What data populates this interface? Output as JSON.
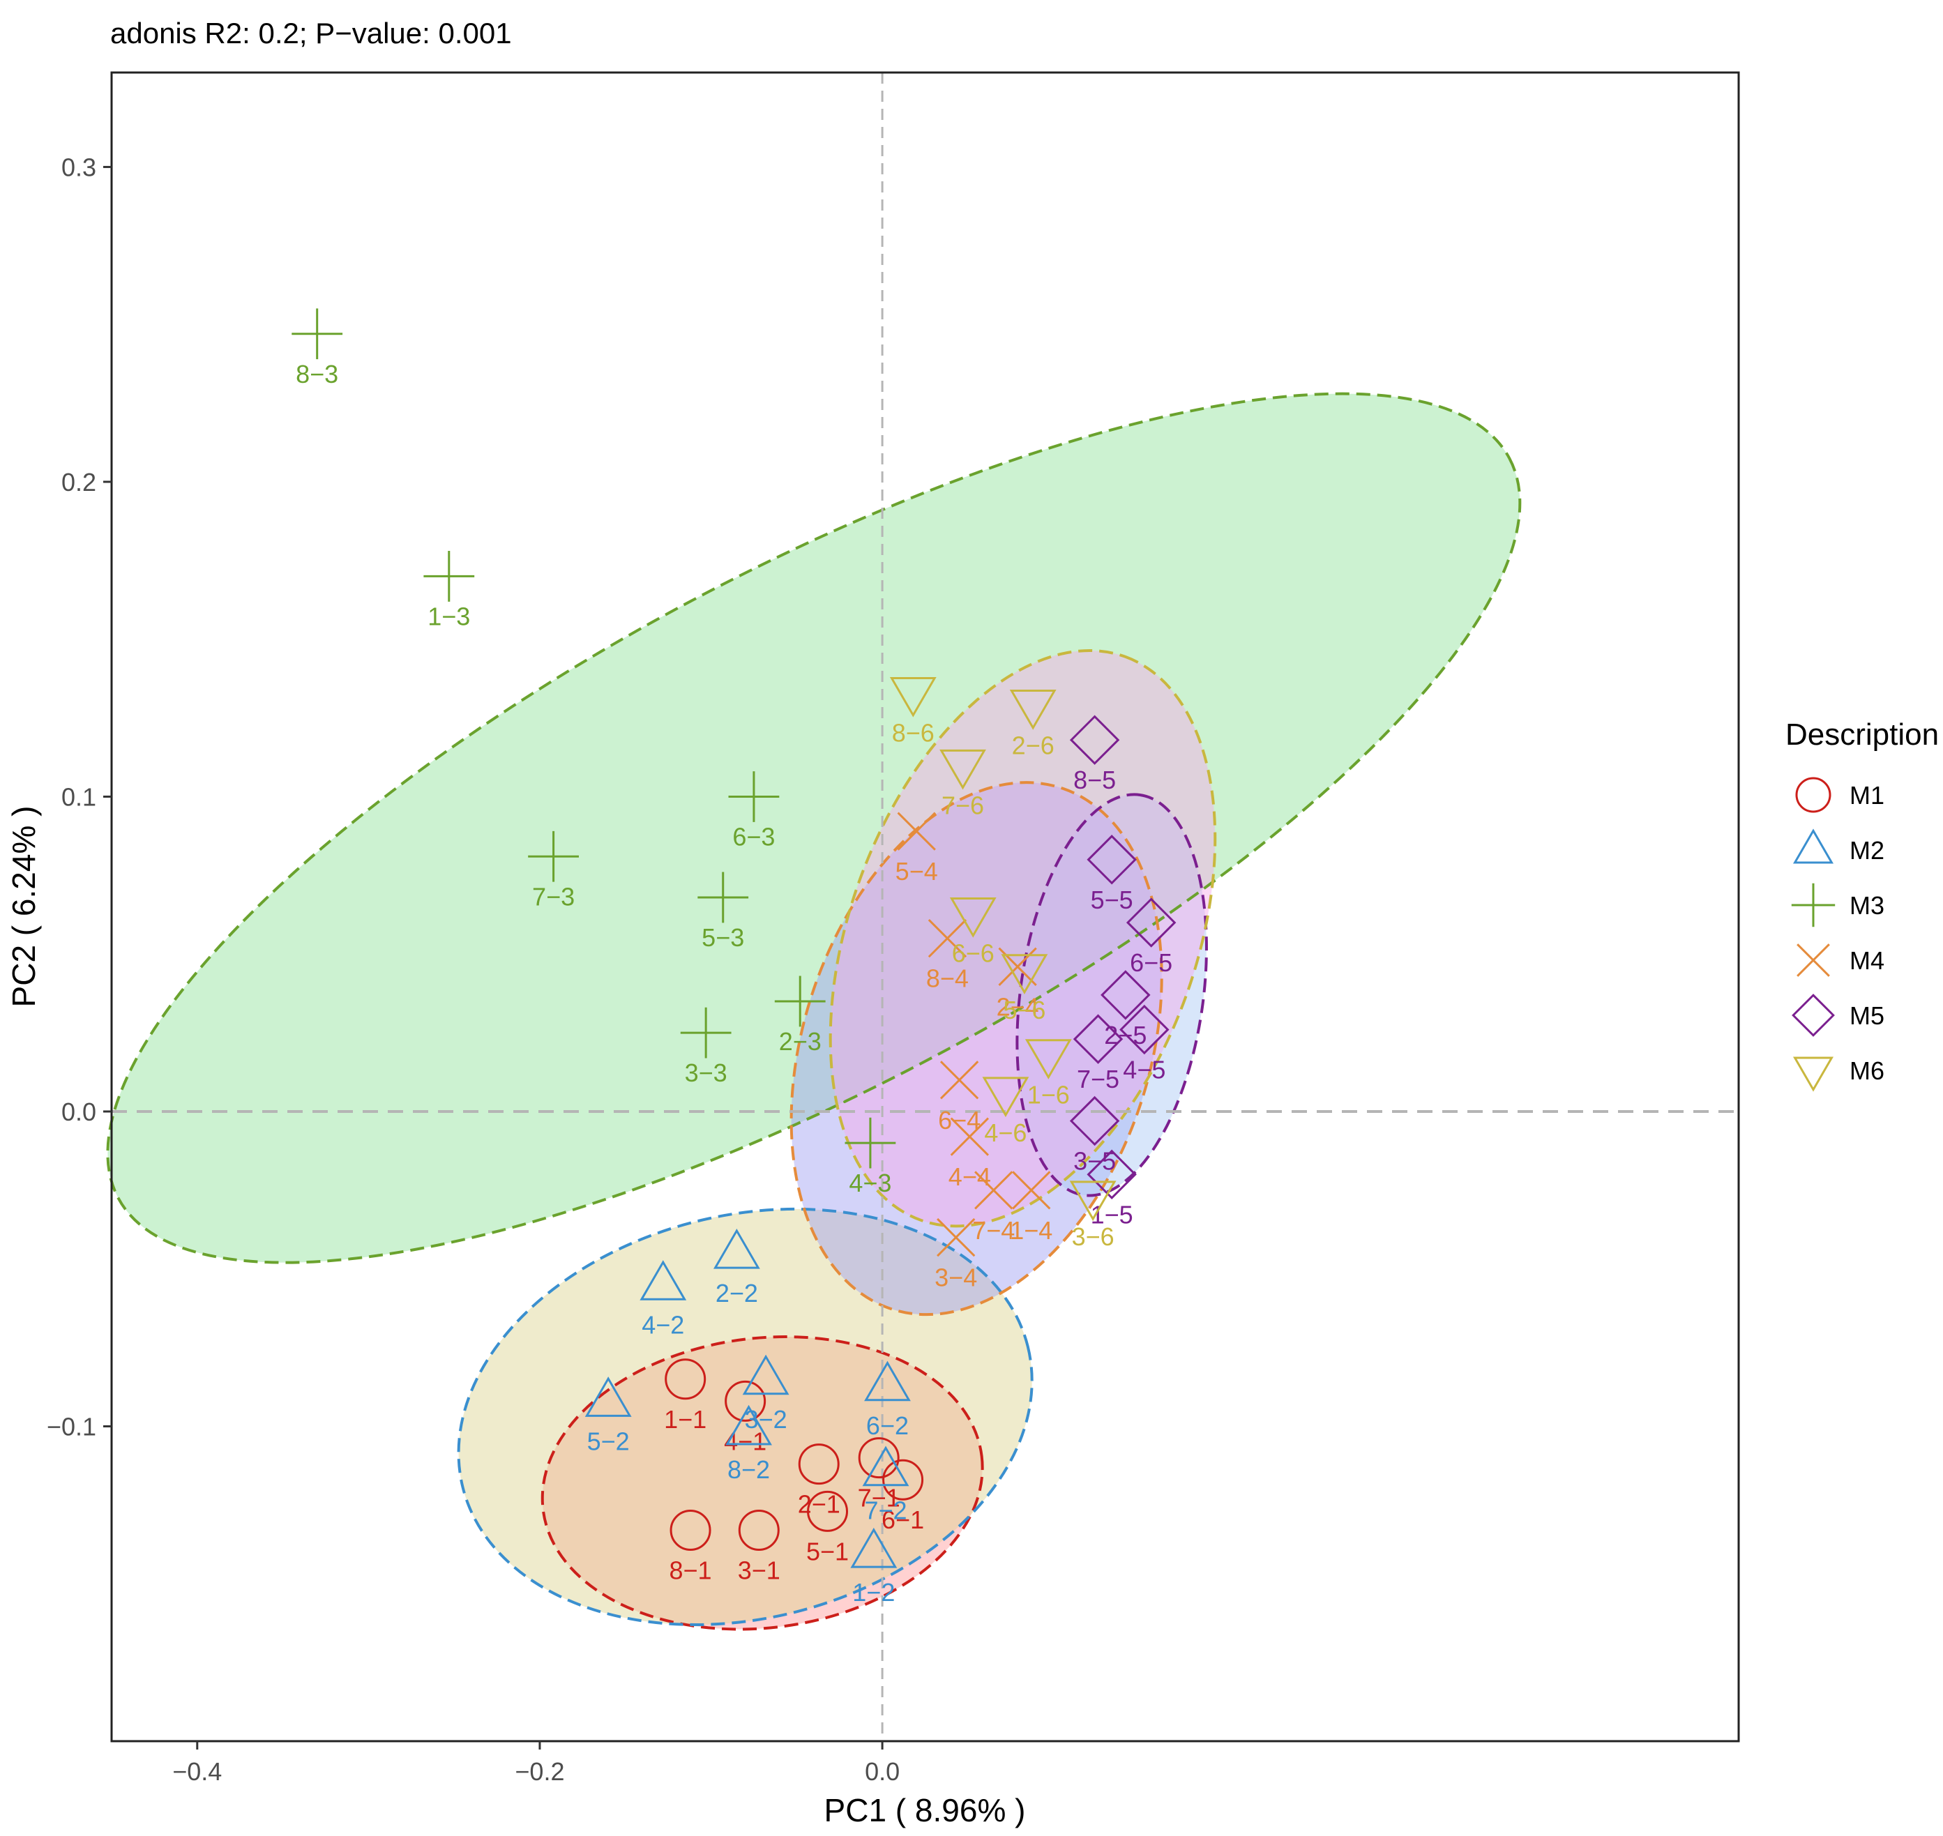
{
  "chart_data": {
    "type": "scatter",
    "subtitle": "adonis R2: 0.2; P−value: 0.001",
    "xlabel": "PC1 ( 8.96% )",
    "ylabel": "PC2 ( 6.24% )",
    "xlim": [
      -0.45,
      0.5
    ],
    "ylim": [
      -0.2,
      0.33
    ],
    "x_ticks": [
      -0.4,
      -0.2,
      0.0
    ],
    "x_tick_labels": [
      "−0.4",
      "−0.2",
      "0.0"
    ],
    "y_ticks": [
      0.3,
      0.2,
      0.1,
      0.0,
      -0.1
    ],
    "y_tick_labels": [
      "0.3",
      "0.2",
      "0.1",
      "0.0",
      "−0.1"
    ],
    "reference_lines": {
      "x": 0.0,
      "y": 0.0
    },
    "grid": false,
    "legend": {
      "title": "Description",
      "position": "right"
    },
    "series": [
      {
        "name": "M1",
        "shape": "circle",
        "color": "#cc1f1a",
        "ellipse_fill": "#ff9a9a",
        "points": [
          {
            "label": "1−1",
            "x": -0.115,
            "y": -0.085
          },
          {
            "label": "2−1",
            "x": -0.037,
            "y": -0.112
          },
          {
            "label": "3−1",
            "x": -0.072,
            "y": -0.133
          },
          {
            "label": "4−1",
            "x": -0.08,
            "y": -0.092
          },
          {
            "label": "5−1",
            "x": -0.032,
            "y": -0.127
          },
          {
            "label": "6−1",
            "x": 0.012,
            "y": -0.117
          },
          {
            "label": "7−1",
            "x": -0.002,
            "y": -0.11
          },
          {
            "label": "8−1",
            "x": -0.112,
            "y": -0.133
          }
        ],
        "ellipse": {
          "cx": -0.07,
          "cy": -0.118,
          "rx": 0.129,
          "ry": 0.046,
          "angle": -7
        }
      },
      {
        "name": "M2",
        "shape": "triangle-up",
        "color": "#3a8fcf",
        "ellipse_fill": "#dcd28f",
        "points": [
          {
            "label": "1−2",
            "x": -0.005,
            "y": -0.14
          },
          {
            "label": "2−2",
            "x": -0.085,
            "y": -0.045
          },
          {
            "label": "3−2",
            "x": -0.068,
            "y": -0.085
          },
          {
            "label": "4−2",
            "x": -0.128,
            "y": -0.055
          },
          {
            "label": "5−2",
            "x": -0.16,
            "y": -0.092
          },
          {
            "label": "6−2",
            "x": 0.003,
            "y": -0.087
          },
          {
            "label": "7−2",
            "x": 0.002,
            "y": -0.114
          },
          {
            "label": "8−2",
            "x": -0.078,
            "y": -0.101
          }
        ],
        "ellipse": {
          "cx": -0.08,
          "cy": -0.097,
          "rx": 0.17,
          "ry": 0.064,
          "angle": -14
        }
      },
      {
        "name": "M3",
        "shape": "plus",
        "color": "#6aa22d",
        "ellipse_fill": "#8ee39a",
        "points": [
          {
            "label": "1−3",
            "x": -0.253,
            "y": 0.17
          },
          {
            "label": "2−3",
            "x": -0.048,
            "y": 0.035
          },
          {
            "label": "3−3",
            "x": -0.103,
            "y": 0.025
          },
          {
            "label": "4−3",
            "x": -0.007,
            "y": -0.01
          },
          {
            "label": "5−3",
            "x": -0.093,
            "y": 0.068
          },
          {
            "label": "6−3",
            "x": -0.075,
            "y": 0.1
          },
          {
            "label": "7−3",
            "x": -0.192,
            "y": 0.081
          },
          {
            "label": "8−3",
            "x": -0.33,
            "y": 0.247
          }
        ],
        "ellipse": {
          "cx": -0.04,
          "cy": 0.09,
          "rx": 0.46,
          "ry": 0.082,
          "angle": -28
        }
      },
      {
        "name": "M4",
        "shape": "cross",
        "color": "#e58b3b",
        "ellipse_fill": "#9e9ef2",
        "points": [
          {
            "label": "1−4",
            "x": 0.087,
            "y": -0.025
          },
          {
            "label": "2−4",
            "x": 0.079,
            "y": 0.046
          },
          {
            "label": "3−4",
            "x": 0.043,
            "y": -0.04
          },
          {
            "label": "4−4",
            "x": 0.051,
            "y": -0.008
          },
          {
            "label": "5−4",
            "x": 0.02,
            "y": 0.089
          },
          {
            "label": "6−4",
            "x": 0.045,
            "y": 0.01
          },
          {
            "label": "7−4",
            "x": 0.065,
            "y": -0.025
          },
          {
            "label": "8−4",
            "x": 0.038,
            "y": 0.055
          }
        ],
        "ellipse": {
          "cx": 0.055,
          "cy": 0.02,
          "rx": 0.16,
          "ry": 0.055,
          "angle": -72
        }
      },
      {
        "name": "M5",
        "shape": "diamond",
        "color": "#7b1f8f",
        "ellipse_fill": "#a9c8f5",
        "points": [
          {
            "label": "1−5",
            "x": 0.134,
            "y": -0.02
          },
          {
            "label": "2−5",
            "x": 0.142,
            "y": 0.037
          },
          {
            "label": "3−5",
            "x": 0.124,
            "y": -0.003
          },
          {
            "label": "4−5",
            "x": 0.153,
            "y": 0.026
          },
          {
            "label": "5−5",
            "x": 0.134,
            "y": 0.08
          },
          {
            "label": "6−5",
            "x": 0.157,
            "y": 0.06
          },
          {
            "label": "7−5",
            "x": 0.126,
            "y": 0.023
          },
          {
            "label": "8−5",
            "x": 0.124,
            "y": 0.118
          }
        ],
        "ellipse": {
          "cx": 0.134,
          "cy": 0.037,
          "rx": 0.118,
          "ry": 0.029,
          "angle": -82
        }
      },
      {
        "name": "M6",
        "shape": "triangle-down",
        "color": "#c9b73e",
        "ellipse_fill": "#f7a9e9",
        "points": [
          {
            "label": "1−6",
            "x": 0.097,
            "y": 0.018
          },
          {
            "label": "2−6",
            "x": 0.088,
            "y": 0.129
          },
          {
            "label": "3−6",
            "x": 0.123,
            "y": -0.027
          },
          {
            "label": "4−6",
            "x": 0.072,
            "y": 0.006
          },
          {
            "label": "5−6",
            "x": 0.083,
            "y": 0.045
          },
          {
            "label": "6−6",
            "x": 0.053,
            "y": 0.063
          },
          {
            "label": "7−6",
            "x": 0.047,
            "y": 0.11
          },
          {
            "label": "8−6",
            "x": 0.018,
            "y": 0.133
          }
        ],
        "ellipse": {
          "cx": 0.082,
          "cy": 0.055,
          "rx": 0.175,
          "ry": 0.055,
          "angle": -70
        }
      }
    ]
  }
}
